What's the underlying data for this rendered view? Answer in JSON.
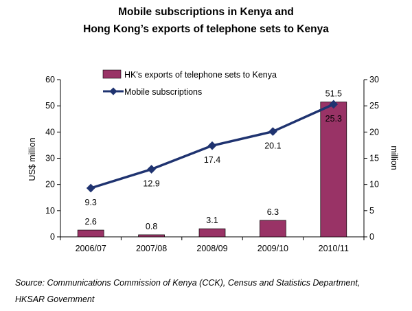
{
  "chart_data": {
    "type": "bar",
    "title_lines": [
      "Mobile subscriptions in Kenya and",
      "Hong Kong’s exports of telephone sets to Kenya"
    ],
    "categories": [
      "2006/07",
      "2007/08",
      "2008/09",
      "2009/10",
      "2010/11"
    ],
    "series": [
      {
        "name": "HK's exports of telephone sets to Kenya",
        "kind": "bar",
        "axis": "left",
        "values": [
          2.6,
          0.8,
          3.1,
          6.3,
          51.5
        ],
        "labels": [
          "2.6",
          "0.8",
          "3.1",
          "6.3",
          "51.5"
        ],
        "color": "#993366"
      },
      {
        "name": "Mobile subscriptions",
        "kind": "line",
        "axis": "right",
        "values": [
          9.3,
          12.9,
          17.4,
          20.1,
          25.3
        ],
        "labels": [
          "9.3",
          "12.9",
          "17.4",
          "20.1",
          "25.3"
        ],
        "color": "#1F3370"
      }
    ],
    "ylabel": "US$ million",
    "ylim": [
      0,
      60
    ],
    "yticks": [
      "0",
      "10",
      "20",
      "30",
      "40",
      "50",
      "60"
    ],
    "y2label": "million",
    "y2lim": [
      0,
      30
    ],
    "y2ticks": [
      "0",
      "5",
      "10",
      "15",
      "20",
      "25",
      "30"
    ],
    "grid": false,
    "legend_position": "top-left"
  },
  "source": {
    "line1": "Source: Communications Commission of Kenya (CCK), Census and Statistics Department,",
    "line2": "HKSAR Government"
  }
}
